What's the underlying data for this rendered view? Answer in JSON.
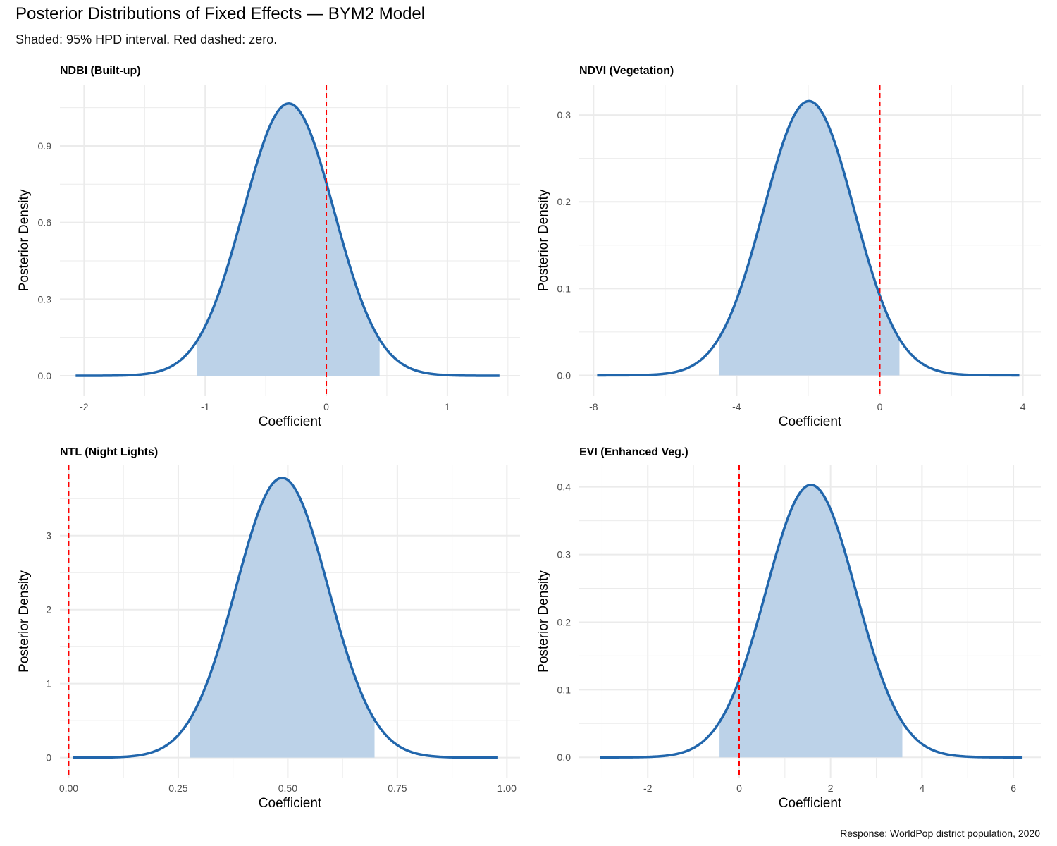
{
  "header": {
    "title": "Posterior Distributions of Fixed Effects — BYM2 Model",
    "subtitle": "Shaded: 95% HPD interval. Red dashed: zero.",
    "caption": "Response: WorldPop district population, 2020"
  },
  "colors": {
    "curve": "#2166AC",
    "fill": "#BCD2E8",
    "zero_line": "#FF0000",
    "grid": "#EBEBEB"
  },
  "chart_data": [
    {
      "type": "area",
      "title": "NDBI (Built-up)",
      "xlabel": "Coefficient",
      "ylabel": "Posterior Density",
      "xlim": [
        -2.2,
        1.6
      ],
      "ylim": [
        -0.08,
        1.14
      ],
      "x_ticks": [
        -2,
        -1,
        0,
        1
      ],
      "x_tick_labels": [
        "-2",
        "-1",
        "0",
        "1"
      ],
      "y_ticks": [
        0,
        0.3,
        0.6,
        0.9
      ],
      "y_tick_labels": [
        "0.0",
        "0.3",
        "0.6",
        "0.9"
      ],
      "distribution": {
        "mean": -0.31,
        "sd": 0.374,
        "peak_density": 1.066
      },
      "x_range": [
        -2.07,
        1.43
      ],
      "hpd": [
        -1.07,
        0.44
      ],
      "zero_line": 0
    },
    {
      "type": "area",
      "title": "NDVI (Vegetation)",
      "xlabel": "Coefficient",
      "ylabel": "Posterior Density",
      "xlim": [
        -8.4,
        4.5
      ],
      "ylim": [
        -0.024,
        0.335
      ],
      "x_ticks": [
        -8,
        -4,
        0,
        4
      ],
      "x_tick_labels": [
        "-8",
        "-4",
        "0",
        "4"
      ],
      "y_ticks": [
        0,
        0.1,
        0.2,
        0.3
      ],
      "y_tick_labels": [
        "0.0",
        "0.1",
        "0.2",
        "0.3"
      ],
      "distribution": {
        "mean": -1.98,
        "sd": 1.26,
        "peak_density": 0.316
      },
      "x_range": [
        -7.9,
        3.9
      ],
      "hpd": [
        -4.5,
        0.55
      ],
      "zero_line": 0
    },
    {
      "type": "area",
      "title": "NTL (Night Lights)",
      "xlabel": "Coefficient",
      "ylabel": "Posterior Density",
      "xlim": [
        -0.02,
        1.03
      ],
      "ylim": [
        -0.27,
        3.95
      ],
      "x_ticks": [
        0,
        0.25,
        0.5,
        0.75,
        1
      ],
      "x_tick_labels": [
        "0.00",
        "0.25",
        "0.50",
        "0.75",
        "1.00"
      ],
      "y_ticks": [
        0,
        1,
        2,
        3
      ],
      "y_tick_labels": [
        "0",
        "1",
        "2",
        "3"
      ],
      "distribution": {
        "mean": 0.487,
        "sd": 0.1055,
        "peak_density": 3.78
      },
      "x_range": [
        0.01,
        0.98
      ],
      "hpd": [
        0.277,
        0.698
      ],
      "zero_line": 0
    },
    {
      "type": "area",
      "title": "EVI (Enhanced Veg.)",
      "xlabel": "Coefficient",
      "ylabel": "Posterior Density",
      "xlim": [
        -3.5,
        6.6
      ],
      "ylim": [
        -0.03,
        0.432
      ],
      "x_ticks": [
        -2,
        0,
        2,
        4,
        6
      ],
      "x_tick_labels": [
        "-2",
        "0",
        "2",
        "4",
        "6"
      ],
      "y_ticks": [
        0,
        0.1,
        0.2,
        0.3,
        0.4
      ],
      "y_tick_labels": [
        "0.0",
        "0.1",
        "0.2",
        "0.3",
        "0.4"
      ],
      "distribution": {
        "mean": 1.57,
        "sd": 0.99,
        "peak_density": 0.403
      },
      "x_range": [
        -3.05,
        6.2
      ],
      "hpd": [
        -0.43,
        3.57
      ],
      "zero_line": 0
    }
  ]
}
